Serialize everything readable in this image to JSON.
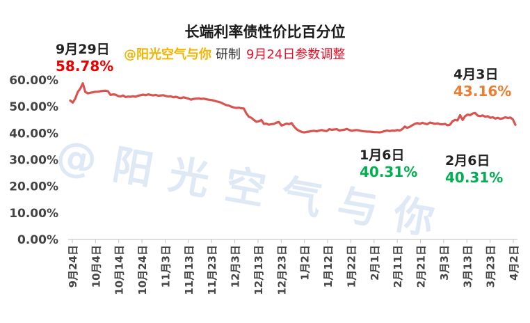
{
  "chart_data": {
    "type": "line",
    "title": "长端利率债性价比百分位",
    "subtitle": {
      "brand": "@阳光空气与你",
      "maker": "研制",
      "note": "9月24日参数调整"
    },
    "watermark": "@阳光空气与你",
    "y_ticks": [
      "0.00%",
      "10.00%",
      "20.00%",
      "30.00%",
      "40.00%",
      "50.00%",
      "60.00%"
    ],
    "ylim": [
      0,
      60
    ],
    "x_ticks": [
      "9月24日",
      "10月4日",
      "10月14日",
      "10月24日",
      "11月3日",
      "11月13日",
      "11月23日",
      "12月3日",
      "12月13日",
      "12月23日",
      "1月2日",
      "1月12日",
      "1月22日",
      "2月1日",
      "2月11日",
      "2月21日",
      "3月3日",
      "3月13日",
      "3月23日",
      "4月2日"
    ],
    "line_color": "#d9534f",
    "series": [
      {
        "values": [
          52.3,
          51.5,
          53.0,
          55.5,
          56.8,
          58.78,
          55.5,
          55.0,
          55.2,
          55.4,
          55.6,
          55.6,
          55.8,
          55.9,
          56.0,
          55.8,
          54.4,
          54.6,
          54.5,
          54.0,
          53.8,
          54.2,
          53.6,
          53.8,
          53.7,
          53.9,
          53.7,
          54.1,
          54.3,
          54.5,
          54.3,
          54.6,
          54.4,
          54.2,
          54.4,
          54.1,
          54.2,
          54.3,
          54.0,
          53.8,
          53.9,
          53.5,
          53.7,
          53.4,
          53.2,
          53.5,
          53.3,
          53.0,
          52.6,
          52.9,
          53.0,
          53.1,
          52.9,
          53.0,
          52.8,
          52.6,
          52.5,
          52.3,
          52.0,
          51.8,
          51.5,
          51.0,
          50.6,
          50.4,
          50.0,
          49.7,
          49.5,
          49.6,
          49.4,
          49.3,
          47.5,
          46.2,
          45.8,
          45.0,
          44.3,
          44.5,
          45.0,
          43.5,
          43.6,
          43.2,
          43.4,
          43.5,
          44.0,
          44.2,
          42.9,
          43.2,
          43.6,
          43.4,
          43.8,
          42.5,
          41.5,
          40.9,
          40.5,
          40.3,
          40.5,
          40.6,
          40.8,
          40.9,
          40.7,
          41.0,
          41.2,
          40.9,
          40.8,
          41.5,
          41.3,
          41.4,
          41.5,
          41.0,
          41.2,
          41.3,
          41.6,
          41.2,
          40.9,
          41.1,
          41.2,
          41.0,
          40.8,
          40.7,
          40.6,
          40.6,
          40.5,
          40.4,
          40.4,
          40.3,
          40.5,
          40.8,
          41.0,
          40.8,
          41.0,
          40.9,
          41.2,
          41.0,
          41.5,
          42.5,
          42.0,
          42.4,
          43.0,
          43.5,
          43.8,
          43.5,
          43.9,
          43.6,
          43.4,
          44.0,
          43.8,
          43.5,
          43.7,
          43.4,
          43.3,
          43.5,
          43.0,
          43.2,
          44.5,
          45.0,
          44.8,
          46.8,
          45.0,
          46.4,
          47.0,
          46.8,
          47.4,
          47.6,
          46.6,
          46.4,
          46.7,
          46.2,
          46.4,
          45.8,
          46.0,
          45.5,
          45.8,
          45.4,
          45.6,
          46.0,
          45.7,
          45.9,
          45.2,
          43.16
        ]
      }
    ],
    "annotations": [
      {
        "date": "9月29日",
        "value": "58.78%",
        "color": "#ee0000"
      },
      {
        "date": "1月6日",
        "value": "40.31%",
        "color": "#00b050"
      },
      {
        "date": "2月6日",
        "value": "40.31%",
        "color": "#00b050"
      },
      {
        "date": "4月3日",
        "value": "43.16%",
        "color": "#ed7d31"
      }
    ]
  }
}
